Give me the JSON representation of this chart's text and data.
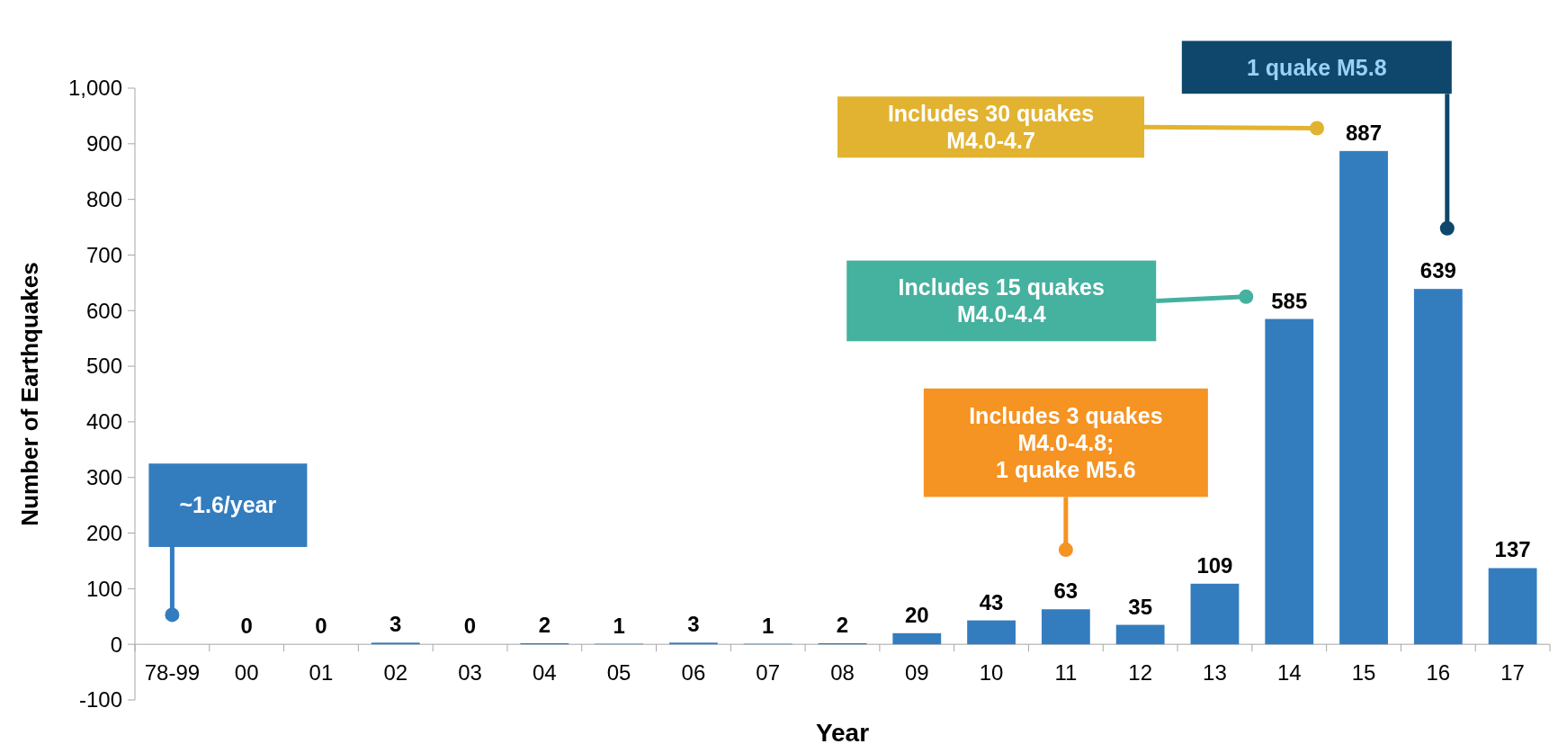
{
  "chart_data": {
    "type": "bar",
    "xlabel": "Year",
    "ylabel": "Number of Earthquakes",
    "categories": [
      "78-99",
      "00",
      "01",
      "02",
      "03",
      "04",
      "05",
      "06",
      "07",
      "08",
      "09",
      "10",
      "11",
      "12",
      "13",
      "14",
      "15",
      "16",
      "17"
    ],
    "values": [
      null,
      0,
      0,
      3,
      0,
      2,
      1,
      3,
      1,
      2,
      20,
      43,
      63,
      35,
      109,
      585,
      887,
      639,
      137
    ],
    "color": "#337dbf",
    "data_labels": true,
    "ylim": [
      -100,
      1000
    ],
    "yticks": [
      -100,
      0,
      100,
      200,
      300,
      400,
      500,
      600,
      700,
      800,
      900,
      {
        "value": 1000,
        "label": "1,000"
      }
    ],
    "annotations": [
      "~1.6/year",
      "Includes 3 quakes\nM4.0-4.8;\n1 quake M5.6",
      "Includes 15 quakes\nM4.0-4.4",
      "Includes 30 quakes\nM4.0-4.7",
      "1 quake M5.8"
    ]
  }
}
